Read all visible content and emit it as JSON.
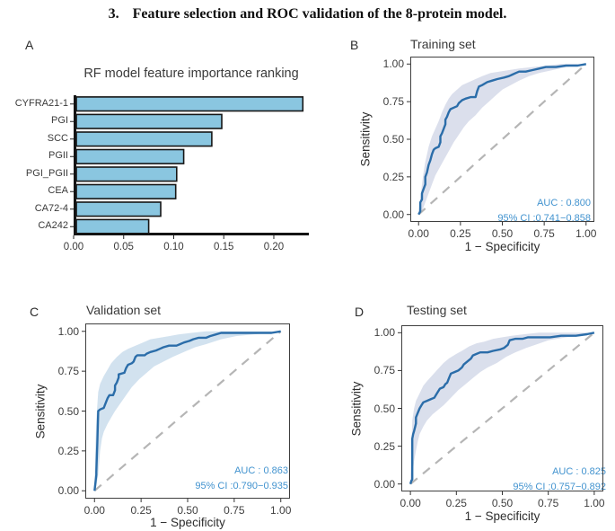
{
  "heading": {
    "number": "3.",
    "text": "Feature selection and ROC validation of the 8-protein model."
  },
  "colors": {
    "roc_line": "#2b6da9",
    "diagonal": "#b5b5b5",
    "auc_text": "#4293cf",
    "bar_fill": "#8ac6e0",
    "bar_border": "#161616",
    "axis_text": "#3f3f3f"
  },
  "panels": {
    "a": {
      "label": "A",
      "title": "RF model feature importance ranking"
    },
    "b": {
      "label": "B",
      "title": "Training set",
      "xlabel": "1 − Specificity",
      "ylabel": "Sensitivity",
      "auc_text": "AUC : 0.800",
      "ci_text": "95% CI :0.741−0.858"
    },
    "c": {
      "label": "C",
      "title": "Validation set",
      "xlabel": "1 − Specificity",
      "ylabel": "Sensitivity",
      "auc_text": "AUC : 0.863",
      "ci_text": "95% CI :0.790−0.935"
    },
    "d": {
      "label": "D",
      "title": "Testing set",
      "xlabel": "1 − Specificity",
      "ylabel": "Sensitivity",
      "auc_text": "AUC : 0.825",
      "ci_text": "95% CI :0.757−0.892"
    }
  },
  "chart_data": [
    {
      "type": "bar",
      "orientation": "horizontal",
      "title": "RF model feature importance ranking",
      "categories": [
        "CYFRA21-1",
        "PGI",
        "SCC",
        "PGII",
        "PGI_PGII",
        "CEA",
        "CA72-4",
        "CA242"
      ],
      "values": [
        0.229,
        0.148,
        0.138,
        0.11,
        0.103,
        0.102,
        0.087,
        0.075
      ],
      "x_ticks": [
        0,
        0.05,
        0.1,
        0.15,
        0.2
      ],
      "x_tick_labels": [
        "0.00",
        "0.05",
        "0.10",
        "0.15",
        "0.20"
      ],
      "xlim": [
        0,
        0.235
      ],
      "grid": false
    },
    {
      "type": "line",
      "subtype": "roc",
      "title": "Training set",
      "xlabel": "1 − Specificity",
      "ylabel": "Sensitivity",
      "auc": 0.8,
      "ci": "0.741-0.858",
      "xlim": [
        0,
        1
      ],
      "ylim": [
        0,
        1
      ],
      "ticks": [
        0,
        0.25,
        0.5,
        0.75,
        1
      ],
      "tick_labels": [
        "0.00",
        "0.25",
        "0.50",
        "0.75",
        "1.00"
      ],
      "band_color": "#dbdfec",
      "curve": [
        [
          0,
          0
        ],
        [
          0.01,
          0.02
        ],
        [
          0.01,
          0.08
        ],
        [
          0.02,
          0.1
        ],
        [
          0.02,
          0.14
        ],
        [
          0.03,
          0.17
        ],
        [
          0.04,
          0.2
        ],
        [
          0.04,
          0.25
        ],
        [
          0.05,
          0.28
        ],
        [
          0.06,
          0.33
        ],
        [
          0.07,
          0.36
        ],
        [
          0.08,
          0.4
        ],
        [
          0.09,
          0.43
        ],
        [
          0.1,
          0.44
        ],
        [
          0.12,
          0.45
        ],
        [
          0.13,
          0.48
        ],
        [
          0.13,
          0.52
        ],
        [
          0.14,
          0.54
        ],
        [
          0.15,
          0.57
        ],
        [
          0.16,
          0.6
        ],
        [
          0.16,
          0.63
        ],
        [
          0.17,
          0.65
        ],
        [
          0.18,
          0.68
        ],
        [
          0.19,
          0.7
        ],
        [
          0.21,
          0.71
        ],
        [
          0.23,
          0.72
        ],
        [
          0.24,
          0.74
        ],
        [
          0.25,
          0.75
        ],
        [
          0.26,
          0.76
        ],
        [
          0.28,
          0.77
        ],
        [
          0.31,
          0.78
        ],
        [
          0.34,
          0.78
        ],
        [
          0.35,
          0.82
        ],
        [
          0.36,
          0.85
        ],
        [
          0.38,
          0.86
        ],
        [
          0.41,
          0.88
        ],
        [
          0.44,
          0.89
        ],
        [
          0.47,
          0.9
        ],
        [
          0.51,
          0.91
        ],
        [
          0.54,
          0.92
        ],
        [
          0.56,
          0.93
        ],
        [
          0.58,
          0.94
        ],
        [
          0.6,
          0.95
        ],
        [
          0.64,
          0.95
        ],
        [
          0.68,
          0.96
        ],
        [
          0.72,
          0.97
        ],
        [
          0.76,
          0.98
        ],
        [
          0.82,
          0.98
        ],
        [
          0.88,
          0.99
        ],
        [
          0.95,
          0.99
        ],
        [
          1,
          1
        ]
      ],
      "band_upper": [
        [
          0,
          0.02
        ],
        [
          0.01,
          0.1
        ],
        [
          0.02,
          0.2
        ],
        [
          0.03,
          0.28
        ],
        [
          0.04,
          0.35
        ],
        [
          0.05,
          0.4
        ],
        [
          0.06,
          0.45
        ],
        [
          0.08,
          0.52
        ],
        [
          0.1,
          0.57
        ],
        [
          0.12,
          0.62
        ],
        [
          0.14,
          0.68
        ],
        [
          0.16,
          0.73
        ],
        [
          0.18,
          0.77
        ],
        [
          0.2,
          0.8
        ],
        [
          0.23,
          0.83
        ],
        [
          0.26,
          0.86
        ],
        [
          0.3,
          0.88
        ],
        [
          0.34,
          0.9
        ],
        [
          0.38,
          0.92
        ],
        [
          0.43,
          0.94
        ],
        [
          0.48,
          0.95
        ],
        [
          0.54,
          0.96
        ],
        [
          0.6,
          0.97
        ],
        [
          0.68,
          0.98
        ],
        [
          0.76,
          0.99
        ],
        [
          0.85,
          1.0
        ],
        [
          1,
          1
        ]
      ],
      "band_lower": [
        [
          0,
          0
        ],
        [
          0.02,
          0.02
        ],
        [
          0.04,
          0.08
        ],
        [
          0.06,
          0.14
        ],
        [
          0.08,
          0.2
        ],
        [
          0.1,
          0.26
        ],
        [
          0.12,
          0.3
        ],
        [
          0.15,
          0.36
        ],
        [
          0.18,
          0.42
        ],
        [
          0.21,
          0.48
        ],
        [
          0.24,
          0.53
        ],
        [
          0.27,
          0.58
        ],
        [
          0.3,
          0.62
        ],
        [
          0.34,
          0.66
        ],
        [
          0.38,
          0.71
        ],
        [
          0.42,
          0.75
        ],
        [
          0.46,
          0.79
        ],
        [
          0.5,
          0.83
        ],
        [
          0.55,
          0.86
        ],
        [
          0.6,
          0.89
        ],
        [
          0.66,
          0.92
        ],
        [
          0.72,
          0.94
        ],
        [
          0.8,
          0.96
        ],
        [
          0.88,
          0.98
        ],
        [
          1,
          1
        ]
      ]
    },
    {
      "type": "line",
      "subtype": "roc",
      "title": "Validation set",
      "xlabel": "1 − Specificity",
      "ylabel": "Sensitivity",
      "auc": 0.863,
      "ci": "0.790-0.935",
      "xlim": [
        0,
        1
      ],
      "ylim": [
        0,
        1
      ],
      "ticks": [
        0,
        0.25,
        0.5,
        0.75,
        1
      ],
      "tick_labels": [
        "0.00",
        "0.25",
        "0.50",
        "0.75",
        "1.00"
      ],
      "band_color": "#d2e2ef",
      "curve": [
        [
          0,
          0
        ],
        [
          0.005,
          0.05
        ],
        [
          0.01,
          0.1
        ],
        [
          0.01,
          0.12
        ],
        [
          0.015,
          0.3
        ],
        [
          0.02,
          0.5
        ],
        [
          0.03,
          0.51
        ],
        [
          0.05,
          0.52
        ],
        [
          0.06,
          0.55
        ],
        [
          0.07,
          0.58
        ],
        [
          0.08,
          0.6
        ],
        [
          0.1,
          0.6
        ],
        [
          0.11,
          0.63
        ],
        [
          0.11,
          0.66
        ],
        [
          0.12,
          0.68
        ],
        [
          0.13,
          0.71
        ],
        [
          0.13,
          0.73
        ],
        [
          0.16,
          0.74
        ],
        [
          0.17,
          0.77
        ],
        [
          0.18,
          0.79
        ],
        [
          0.2,
          0.8
        ],
        [
          0.21,
          0.81
        ],
        [
          0.22,
          0.84
        ],
        [
          0.23,
          0.85
        ],
        [
          0.27,
          0.85
        ],
        [
          0.28,
          0.86
        ],
        [
          0.3,
          0.87
        ],
        [
          0.33,
          0.88
        ],
        [
          0.35,
          0.89
        ],
        [
          0.37,
          0.9
        ],
        [
          0.4,
          0.91
        ],
        [
          0.44,
          0.91
        ],
        [
          0.46,
          0.92
        ],
        [
          0.48,
          0.93
        ],
        [
          0.51,
          0.94
        ],
        [
          0.53,
          0.95
        ],
        [
          0.56,
          0.96
        ],
        [
          0.6,
          0.96
        ],
        [
          0.62,
          0.97
        ],
        [
          0.65,
          0.98
        ],
        [
          0.68,
          0.99
        ],
        [
          0.75,
          0.99
        ],
        [
          0.85,
          0.99
        ],
        [
          0.95,
          0.99
        ],
        [
          1,
          1
        ]
      ],
      "band_upper": [
        [
          0,
          0.05
        ],
        [
          0.005,
          0.3
        ],
        [
          0.01,
          0.45
        ],
        [
          0.02,
          0.62
        ],
        [
          0.03,
          0.67
        ],
        [
          0.05,
          0.72
        ],
        [
          0.07,
          0.76
        ],
        [
          0.09,
          0.8
        ],
        [
          0.12,
          0.84
        ],
        [
          0.15,
          0.87
        ],
        [
          0.18,
          0.89
        ],
        [
          0.22,
          0.91
        ],
        [
          0.26,
          0.93
        ],
        [
          0.3,
          0.95
        ],
        [
          0.35,
          0.96
        ],
        [
          0.4,
          0.97
        ],
        [
          0.45,
          0.98
        ],
        [
          0.52,
          0.99
        ],
        [
          0.6,
          1.0
        ],
        [
          1,
          1
        ]
      ],
      "band_lower": [
        [
          0,
          0
        ],
        [
          0.01,
          0.03
        ],
        [
          0.02,
          0.1
        ],
        [
          0.03,
          0.25
        ],
        [
          0.04,
          0.33
        ],
        [
          0.05,
          0.37
        ],
        [
          0.07,
          0.42
        ],
        [
          0.09,
          0.46
        ],
        [
          0.11,
          0.5
        ],
        [
          0.14,
          0.55
        ],
        [
          0.17,
          0.6
        ],
        [
          0.2,
          0.65
        ],
        [
          0.24,
          0.7
        ],
        [
          0.28,
          0.74
        ],
        [
          0.32,
          0.78
        ],
        [
          0.37,
          0.81
        ],
        [
          0.42,
          0.84
        ],
        [
          0.48,
          0.87
        ],
        [
          0.54,
          0.9
        ],
        [
          0.6,
          0.92
        ],
        [
          0.68,
          0.95
        ],
        [
          0.76,
          0.97
        ],
        [
          0.85,
          0.98
        ],
        [
          0.95,
          0.99
        ],
        [
          1,
          1
        ]
      ]
    },
    {
      "type": "line",
      "subtype": "roc",
      "title": "Testing set",
      "xlabel": "1 − Specificity",
      "ylabel": "Sensitivity",
      "auc": 0.825,
      "ci": "0.757-0.892",
      "xlim": [
        0,
        1
      ],
      "ylim": [
        0,
        1
      ],
      "ticks": [
        0,
        0.25,
        0.5,
        0.75,
        1
      ],
      "tick_labels": [
        "0.00",
        "0.25",
        "0.50",
        "0.75",
        "1.00"
      ],
      "band_color": "#dadfec",
      "curve": [
        [
          0,
          0
        ],
        [
          0.005,
          0.02
        ],
        [
          0.01,
          0.03
        ],
        [
          0.01,
          0.3
        ],
        [
          0.015,
          0.33
        ],
        [
          0.02,
          0.35
        ],
        [
          0.03,
          0.4
        ],
        [
          0.03,
          0.44
        ],
        [
          0.04,
          0.47
        ],
        [
          0.05,
          0.5
        ],
        [
          0.06,
          0.52
        ],
        [
          0.07,
          0.54
        ],
        [
          0.09,
          0.55
        ],
        [
          0.11,
          0.56
        ],
        [
          0.13,
          0.57
        ],
        [
          0.14,
          0.59
        ],
        [
          0.15,
          0.61
        ],
        [
          0.16,
          0.63
        ],
        [
          0.18,
          0.64
        ],
        [
          0.19,
          0.66
        ],
        [
          0.2,
          0.67
        ],
        [
          0.21,
          0.7
        ],
        [
          0.22,
          0.73
        ],
        [
          0.24,
          0.74
        ],
        [
          0.26,
          0.75
        ],
        [
          0.28,
          0.77
        ],
        [
          0.29,
          0.79
        ],
        [
          0.31,
          0.81
        ],
        [
          0.33,
          0.83
        ],
        [
          0.34,
          0.85
        ],
        [
          0.36,
          0.86
        ],
        [
          0.38,
          0.87
        ],
        [
          0.42,
          0.87
        ],
        [
          0.45,
          0.88
        ],
        [
          0.49,
          0.89
        ],
        [
          0.51,
          0.9
        ],
        [
          0.53,
          0.92
        ],
        [
          0.54,
          0.95
        ],
        [
          0.57,
          0.96
        ],
        [
          0.61,
          0.96
        ],
        [
          0.64,
          0.97
        ],
        [
          0.7,
          0.97
        ],
        [
          0.76,
          0.97
        ],
        [
          0.82,
          0.98
        ],
        [
          0.9,
          0.98
        ],
        [
          0.96,
          0.99
        ],
        [
          1,
          1
        ]
      ],
      "band_upper": [
        [
          0,
          0.03
        ],
        [
          0.01,
          0.42
        ],
        [
          0.02,
          0.5
        ],
        [
          0.03,
          0.55
        ],
        [
          0.05,
          0.6
        ],
        [
          0.07,
          0.65
        ],
        [
          0.09,
          0.68
        ],
        [
          0.12,
          0.72
        ],
        [
          0.15,
          0.76
        ],
        [
          0.18,
          0.8
        ],
        [
          0.21,
          0.83
        ],
        [
          0.25,
          0.86
        ],
        [
          0.28,
          0.88
        ],
        [
          0.32,
          0.91
        ],
        [
          0.36,
          0.93
        ],
        [
          0.4,
          0.94
        ],
        [
          0.45,
          0.96
        ],
        [
          0.5,
          0.97
        ],
        [
          0.55,
          0.98
        ],
        [
          0.62,
          0.99
        ],
        [
          0.7,
          1.0
        ],
        [
          1,
          1
        ]
      ],
      "band_lower": [
        [
          0,
          0
        ],
        [
          0.01,
          0.05
        ],
        [
          0.02,
          0.15
        ],
        [
          0.03,
          0.22
        ],
        [
          0.04,
          0.28
        ],
        [
          0.05,
          0.33
        ],
        [
          0.07,
          0.38
        ],
        [
          0.09,
          0.42
        ],
        [
          0.12,
          0.46
        ],
        [
          0.15,
          0.49
        ],
        [
          0.18,
          0.52
        ],
        [
          0.22,
          0.57
        ],
        [
          0.26,
          0.62
        ],
        [
          0.3,
          0.66
        ],
        [
          0.34,
          0.7
        ],
        [
          0.38,
          0.74
        ],
        [
          0.42,
          0.77
        ],
        [
          0.47,
          0.8
        ],
        [
          0.52,
          0.84
        ],
        [
          0.57,
          0.87
        ],
        [
          0.63,
          0.9
        ],
        [
          0.68,
          0.92
        ],
        [
          0.75,
          0.95
        ],
        [
          0.85,
          0.97
        ],
        [
          0.93,
          0.98
        ],
        [
          1,
          1
        ]
      ]
    }
  ]
}
